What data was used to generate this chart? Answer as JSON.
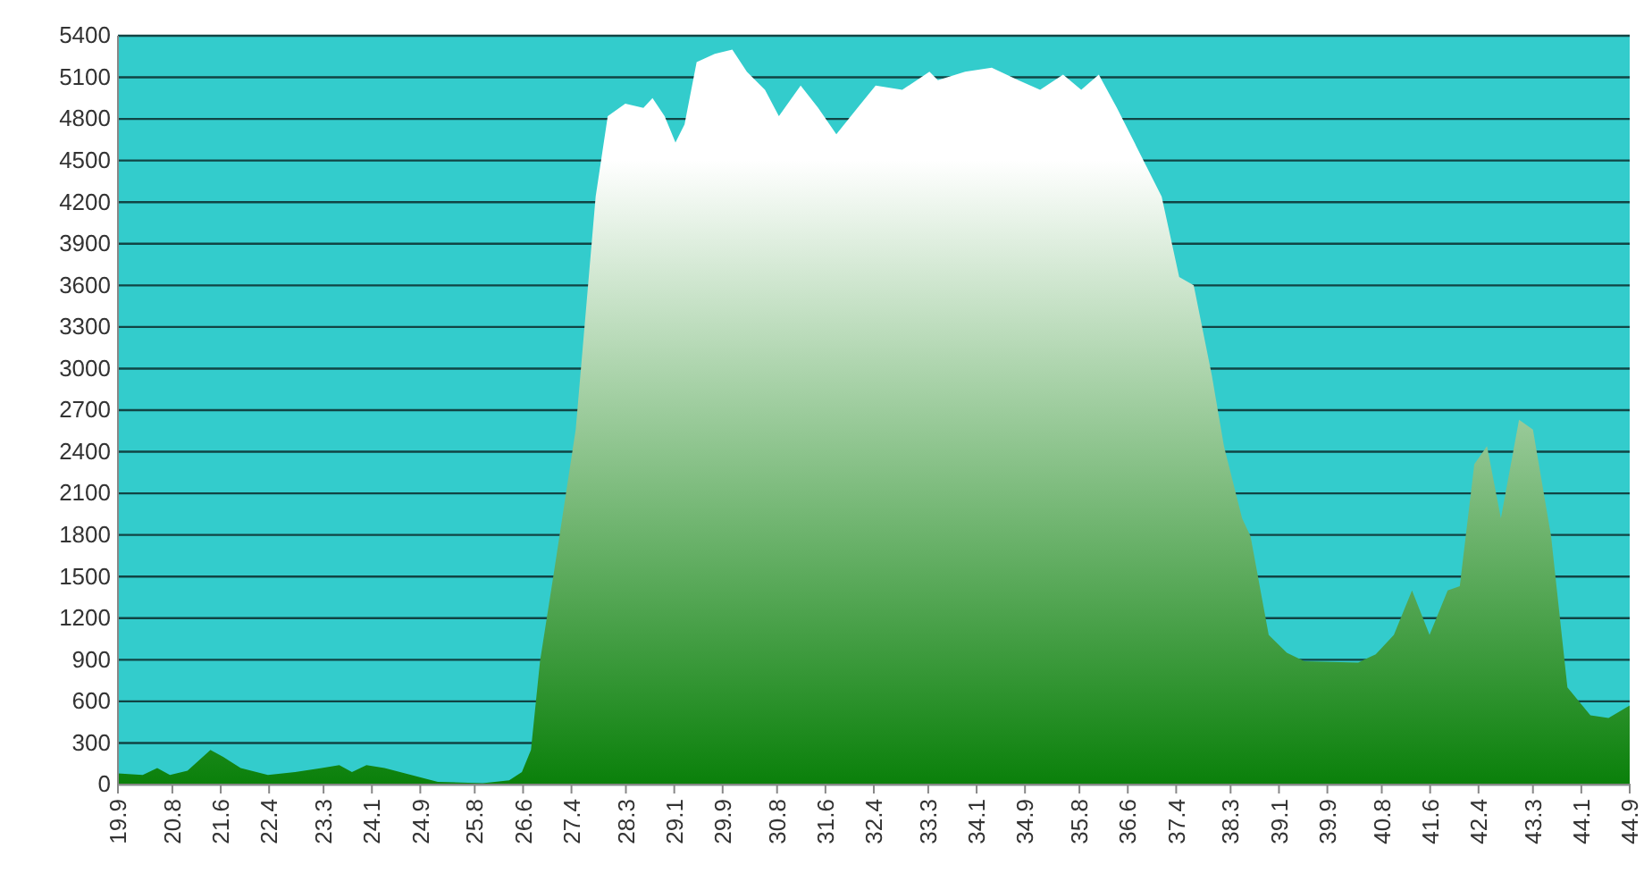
{
  "chart_data": {
    "type": "area",
    "color": "#0a800a",
    "grid": "y",
    "x": [
      19.9,
      20.31,
      20.55,
      20.76,
      21.05,
      21.43,
      21.64,
      21.93,
      22.38,
      22.83,
      23.27,
      23.56,
      23.77,
      24.01,
      24.31,
      24.75,
      25.19,
      25.93,
      26.37,
      26.58,
      26.73,
      26.88,
      27.11,
      27.47,
      27.8,
      28.0,
      28.29,
      28.59,
      28.74,
      28.94,
      29.12,
      29.27,
      29.47,
      29.77,
      30.06,
      30.3,
      30.6,
      30.83,
      31.19,
      31.48,
      31.78,
      32.13,
      32.43,
      32.87,
      33.32,
      33.46,
      33.91,
      34.35,
      34.79,
      35.15,
      35.53,
      35.83,
      36.12,
      36.42,
      36.86,
      37.16,
      37.45,
      37.69,
      37.99,
      38.19,
      38.49,
      38.63,
      38.93,
      39.23,
      39.52,
      40.41,
      40.7,
      41.0,
      41.3,
      41.59,
      41.89,
      42.09,
      42.33,
      42.54,
      42.77,
      43.07,
      43.3,
      43.6,
      43.87,
      44.25,
      44.55,
      44.9
    ],
    "values": [
      80,
      70,
      120,
      70,
      100,
      250,
      200,
      120,
      70,
      90,
      120,
      140,
      90,
      140,
      120,
      70,
      20,
      10,
      30,
      90,
      250,
      890,
      1530,
      2560,
      4240,
      4820,
      4910,
      4880,
      4950,
      4820,
      4630,
      4760,
      5210,
      5270,
      5300,
      5140,
      5010,
      4820,
      5040,
      4880,
      4690,
      4880,
      5040,
      5010,
      5140,
      5080,
      5140,
      5170,
      5080,
      5010,
      5120,
      5010,
      5120,
      4880,
      4500,
      4240,
      3660,
      3600,
      2950,
      2440,
      1920,
      1790,
      1080,
      950,
      890,
      880,
      940,
      1080,
      1400,
      1080,
      1400,
      1430,
      2310,
      2440,
      1920,
      2630,
      2560,
      1790,
      700,
      500,
      480,
      570
    ],
    "xlim": [
      19.9,
      44.9
    ],
    "xticks": [
      19.9,
      20.8,
      21.6,
      22.4,
      23.3,
      24.1,
      24.9,
      25.8,
      26.6,
      27.4,
      28.3,
      29.1,
      29.9,
      30.8,
      31.6,
      32.4,
      33.3,
      34.1,
      34.9,
      35.8,
      36.6,
      37.4,
      38.3,
      39.1,
      39.9,
      40.8,
      41.6,
      42.4,
      43.3,
      44.1,
      44.9
    ],
    "ylim": [
      0,
      5400
    ],
    "yticks": [
      0,
      300,
      600,
      900,
      1200,
      1500,
      1800,
      2100,
      2400,
      2700,
      3000,
      3300,
      3600,
      3900,
      4200,
      4500,
      4800,
      5100,
      5400
    ]
  }
}
